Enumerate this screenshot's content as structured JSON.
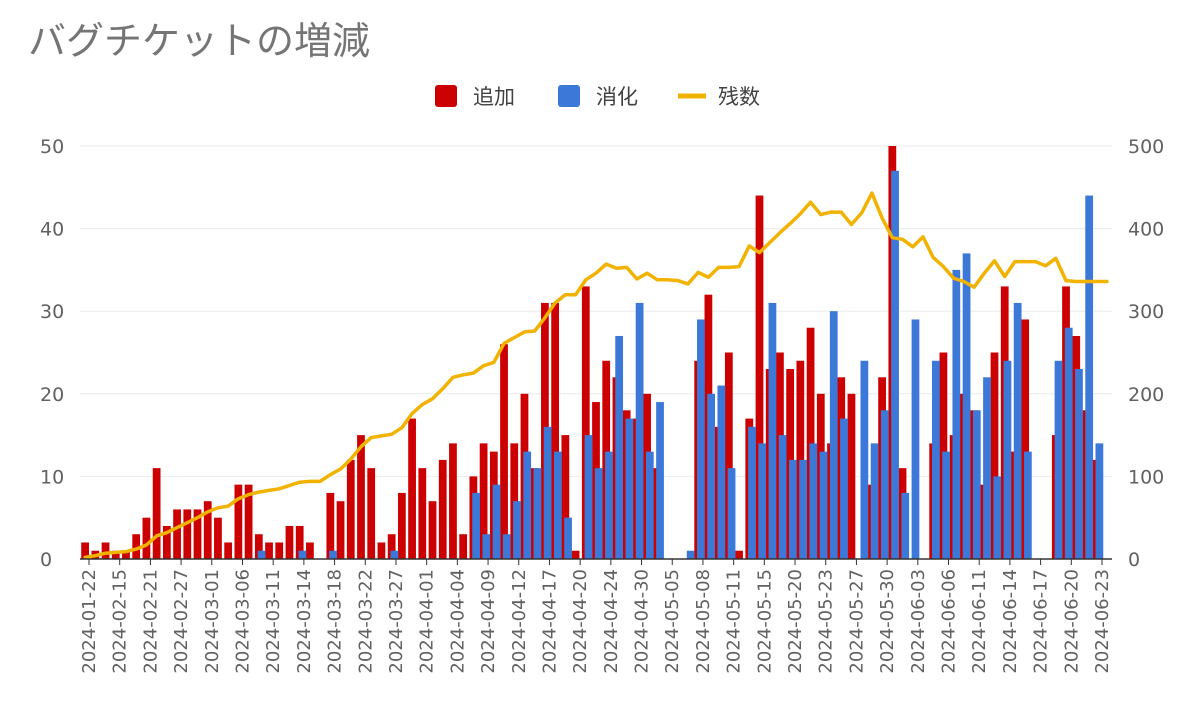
{
  "chart_data": {
    "type": "bar",
    "title": "バグチケットの増減",
    "legend": {
      "position": "top",
      "items": [
        {
          "label": "追加",
          "color": "#cc0000"
        },
        {
          "label": "消化",
          "color": "#3c78d8"
        },
        {
          "label": "残数",
          "color": "#f1b200"
        }
      ]
    },
    "y_left": {
      "min": 0,
      "max": 50,
      "ticks": [
        "0",
        "10",
        "20",
        "30",
        "40",
        "50"
      ],
      "grid": true
    },
    "y_right": {
      "min": 0,
      "max": 500,
      "ticks": [
        "0",
        "100",
        "200",
        "300",
        "400",
        "500"
      ]
    },
    "x_tick_labels": [
      "2024-01-22",
      "2024-02-15",
      "2024-02-21",
      "2024-02-27",
      "2024-03-01",
      "2024-03-06",
      "2024-03-11",
      "2024-03-14",
      "2024-03-18",
      "2024-03-22",
      "2024-03-27",
      "2024-04-01",
      "2024-04-04",
      "2024-04-09",
      "2024-04-12",
      "2024-04-17",
      "2024-04-20",
      "2024-04-24",
      "2024-04-30",
      "2024-05-05",
      "2024-05-08",
      "2024-05-11",
      "2024-05-15",
      "2024-05-20",
      "2024-05-23",
      "2024-05-27",
      "2024-05-30",
      "2024-06-03",
      "2024-06-06",
      "2024-06-11",
      "2024-06-14",
      "2024-06-17",
      "2024-06-20",
      "2024-06-23"
    ],
    "series": [
      {
        "name": "追加",
        "kind": "bar",
        "axis": "left",
        "color": "#cc0000",
        "values": [
          2,
          1,
          2,
          1,
          1,
          3,
          5,
          11,
          4,
          6,
          6,
          6,
          7,
          5,
          2,
          9,
          9,
          3,
          2,
          2,
          4,
          4,
          2,
          0,
          8,
          7,
          12,
          15,
          11,
          2,
          3,
          8,
          17,
          11,
          7,
          12,
          14,
          3,
          10,
          14,
          13,
          26,
          14,
          20,
          11,
          31,
          31,
          15,
          1,
          33,
          19,
          24,
          22,
          18,
          17,
          20,
          11,
          0,
          0,
          0,
          24,
          32,
          16,
          25,
          1,
          17,
          44,
          23,
          25,
          23,
          24,
          28,
          20,
          14,
          22,
          20,
          0,
          9,
          22,
          50,
          11,
          0,
          0,
          14,
          25,
          15,
          20,
          18,
          9,
          25,
          33,
          13,
          29,
          0,
          0,
          15,
          33,
          27,
          18,
          12,
          0
        ]
      },
      {
        "name": "消化",
        "kind": "bar",
        "axis": "left",
        "color": "#3c78d8",
        "values": [
          0,
          0,
          0,
          0,
          0,
          0,
          0,
          0,
          0,
          0,
          0,
          0,
          0,
          0,
          0,
          0,
          0,
          1,
          0,
          0,
          0,
          1,
          0,
          0,
          1,
          0,
          0,
          0,
          0,
          0,
          1,
          0,
          0,
          0,
          0,
          0,
          0,
          0,
          8,
          3,
          9,
          3,
          7,
          13,
          11,
          16,
          13,
          5,
          0,
          15,
          11,
          13,
          27,
          17,
          31,
          13,
          19,
          0,
          0,
          1,
          29,
          20,
          21,
          11,
          0,
          16,
          14,
          31,
          15,
          12,
          12,
          14,
          13,
          30,
          17,
          0,
          24,
          14,
          18,
          47,
          8,
          29,
          0,
          24,
          13,
          35,
          37,
          18,
          22,
          10,
          24,
          31,
          13,
          0,
          0,
          24,
          28,
          23,
          44,
          14,
          0
        ]
      },
      {
        "name": "残数",
        "kind": "line",
        "axis": "right",
        "color": "#f1b200",
        "values": [
          2,
          4,
          7,
          8,
          9,
          12,
          17,
          28,
          32,
          38,
          44,
          50,
          57,
          62,
          64,
          73,
          78,
          81,
          83,
          85,
          89,
          93,
          94,
          94,
          102,
          109,
          121,
          136,
          147,
          149,
          151,
          159,
          176,
          187,
          194,
          206,
          220,
          223,
          225,
          234,
          238,
          261,
          268,
          275,
          276,
          292,
          310,
          320,
          320,
          338,
          346,
          357,
          352,
          353,
          339,
          346,
          338,
          338,
          337,
          333,
          347,
          341,
          353,
          353,
          354,
          379,
          371,
          383,
          395,
          406,
          418,
          432,
          417,
          420,
          420,
          405,
          419,
          443,
          413,
          389,
          387,
          378,
          390,
          365,
          354,
          340,
          336,
          329,
          346,
          361,
          342,
          360,
          360,
          360,
          355,
          364,
          337,
          336,
          336,
          336,
          336
        ]
      }
    ]
  }
}
